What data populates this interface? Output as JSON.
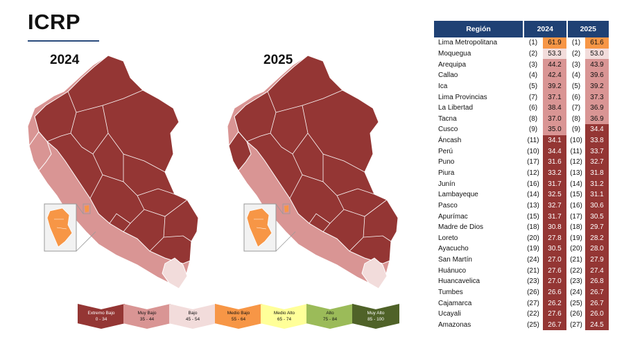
{
  "title": "ICRP",
  "maps": [
    {
      "year": "2024"
    },
    {
      "year": "2025"
    }
  ],
  "colors": {
    "extremo_bajo": "#943634",
    "muy_bajo": "#d99594",
    "bajo": "#f2dcdb",
    "medio_bajo": "#f79646",
    "medio_alto": "#ffff99",
    "alto": "#9bbb59",
    "muy_alto": "#4f6228",
    "header": "#1f4174"
  },
  "legend": [
    {
      "label": "Extremo Bajo",
      "range": "0 - 34",
      "color": "#943634",
      "text_color": "#ffffff"
    },
    {
      "label": "Muy Bajo",
      "range": "35 - 44",
      "color": "#d99594",
      "text_color": "#111111"
    },
    {
      "label": "Bajo",
      "range": "45 - 54",
      "color": "#f2dcdb",
      "text_color": "#111111"
    },
    {
      "label": "Medio Bajo",
      "range": "55 - 64",
      "color": "#f79646",
      "text_color": "#111111"
    },
    {
      "label": "Medio Alto",
      "range": "65 - 74",
      "color": "#ffff99",
      "text_color": "#111111"
    },
    {
      "label": "Alto",
      "range": "75 - 84",
      "color": "#9bbb59",
      "text_color": "#111111"
    },
    {
      "label": "Muy Alto",
      "range": "85 - 100",
      "color": "#4f6228",
      "text_color": "#ffffff"
    }
  ],
  "table": {
    "headers": {
      "region": "Región",
      "y2024": "2024",
      "y2025": "2025"
    },
    "rows": [
      {
        "region": "Lima Metropolitana",
        "r24": "(1)",
        "v24": "61.9",
        "r25": "(1)",
        "v25": "61.6"
      },
      {
        "region": "Moquegua",
        "r24": "(2)",
        "v24": "53.3",
        "r25": "(2)",
        "v25": "53.0"
      },
      {
        "region": "Arequipa",
        "r24": "(3)",
        "v24": "44.2",
        "r25": "(3)",
        "v25": "43.9"
      },
      {
        "region": "Callao",
        "r24": "(4)",
        "v24": "42.4",
        "r25": "(4)",
        "v25": "39.6"
      },
      {
        "region": "Ica",
        "r24": "(5)",
        "v24": "39.2",
        "r25": "(5)",
        "v25": "39.2"
      },
      {
        "region": "Lima Provincias",
        "r24": "(7)",
        "v24": "37.1",
        "r25": "(6)",
        "v25": "37.3"
      },
      {
        "region": "La Libertad",
        "r24": "(6)",
        "v24": "38.4",
        "r25": "(7)",
        "v25": "36.9"
      },
      {
        "region": "Tacna",
        "r24": "(8)",
        "v24": "37.0",
        "r25": "(8)",
        "v25": "36.9"
      },
      {
        "region": "Cusco",
        "r24": "(9)",
        "v24": "35.0",
        "r25": "(9)",
        "v25": "34.4"
      },
      {
        "region": "Áncash",
        "r24": "(11)",
        "v24": "34.1",
        "r25": "(10)",
        "v25": "33.8"
      },
      {
        "region": "Perú",
        "r24": "(10)",
        "v24": "34.4",
        "r25": "(11)",
        "v25": "33.7"
      },
      {
        "region": "Puno",
        "r24": "(17)",
        "v24": "31.6",
        "r25": "(12)",
        "v25": "32.7"
      },
      {
        "region": "Piura",
        "r24": "(12)",
        "v24": "33.2",
        "r25": "(13)",
        "v25": "31.8"
      },
      {
        "region": "Junín",
        "r24": "(16)",
        "v24": "31.7",
        "r25": "(14)",
        "v25": "31.2"
      },
      {
        "region": "Lambayeque",
        "r24": "(14)",
        "v24": "32.5",
        "r25": "(15)",
        "v25": "31.1"
      },
      {
        "region": "Pasco",
        "r24": "(13)",
        "v24": "32.7",
        "r25": "(16)",
        "v25": "30.6"
      },
      {
        "region": "Apurímac",
        "r24": "(15)",
        "v24": "31.7",
        "r25": "(17)",
        "v25": "30.5"
      },
      {
        "region": "Madre de Dios",
        "r24": "(18)",
        "v24": "30.8",
        "r25": "(18)",
        "v25": "29.7"
      },
      {
        "region": "Loreto",
        "r24": "(20)",
        "v24": "27.8",
        "r25": "(19)",
        "v25": "28.2"
      },
      {
        "region": "Ayacucho",
        "r24": "(19)",
        "v24": "30.5",
        "r25": "(20)",
        "v25": "28.0"
      },
      {
        "region": "San Martín",
        "r24": "(24)",
        "v24": "27.0",
        "r25": "(21)",
        "v25": "27.9"
      },
      {
        "region": "Huánuco",
        "r24": "(21)",
        "v24": "27.6",
        "r25": "(22)",
        "v25": "27.4"
      },
      {
        "region": "Huancavelica",
        "r24": "(23)",
        "v24": "27.0",
        "r25": "(23)",
        "v25": "26.8"
      },
      {
        "region": "Tumbes",
        "r24": "(26)",
        "v24": "26.6",
        "r25": "(24)",
        "v25": "26.7"
      },
      {
        "region": "Cajamarca",
        "r24": "(27)",
        "v24": "26.2",
        "r25": "(25)",
        "v25": "26.7"
      },
      {
        "region": "Ucayali",
        "r24": "(22)",
        "v24": "27.6",
        "r25": "(26)",
        "v25": "26.0"
      },
      {
        "region": "Amazonas",
        "r24": "(25)",
        "v24": "26.7",
        "r25": "(27)",
        "v25": "24.5"
      }
    ]
  }
}
